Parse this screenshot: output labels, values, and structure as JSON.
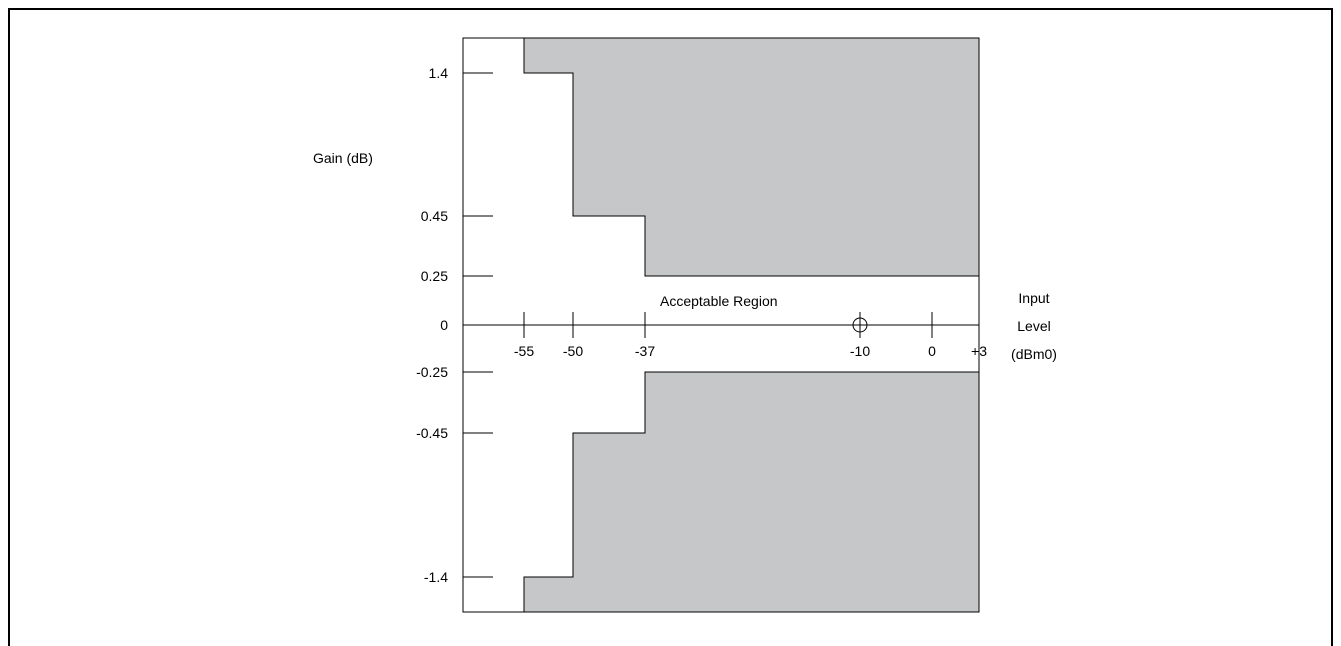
{
  "title": "",
  "y_axis_label": "Gain (dB)",
  "x_axis_label_lines": [
    "Input",
    "Level",
    "(dBm0)"
  ],
  "region_label": "Acceptable Region",
  "colors": {
    "mask_fill": "#c6c7c9",
    "stroke": "#000000",
    "background": "#ffffff"
  },
  "chart_data": {
    "type": "area",
    "y_ticks": [
      {
        "value": 1.4,
        "label": "1.4"
      },
      {
        "value": 0.45,
        "label": "0.45"
      },
      {
        "value": 0.25,
        "label": "0.25"
      },
      {
        "value": 0,
        "label": "0"
      },
      {
        "value": -0.25,
        "label": "-0.25"
      },
      {
        "value": -0.45,
        "label": "-0.45"
      },
      {
        "value": -1.4,
        "label": "-1.4"
      }
    ],
    "x_ticks": [
      {
        "value": -55,
        "label": "-55"
      },
      {
        "value": -50,
        "label": "-50"
      },
      {
        "value": -37,
        "label": "-37"
      },
      {
        "value": -10,
        "label": "-10"
      },
      {
        "value": 0,
        "label": "0"
      },
      {
        "value": 3,
        "label": "+3"
      }
    ],
    "reference_point": {
      "x": -10,
      "y": 0
    },
    "upper_limit_steps": [
      {
        "x_from": -55,
        "x_to": -50,
        "gain": 1.4
      },
      {
        "x_from": -50,
        "x_to": -37,
        "gain": 0.45
      },
      {
        "x_from": -37,
        "x_to": 3,
        "gain": 0.25
      }
    ],
    "lower_limit_steps": [
      {
        "x_from": -55,
        "x_to": -50,
        "gain": -1.4
      },
      {
        "x_from": -50,
        "x_to": -37,
        "gain": -0.45
      },
      {
        "x_from": -37,
        "x_to": 3,
        "gain": -0.25
      }
    ],
    "grid": false
  }
}
